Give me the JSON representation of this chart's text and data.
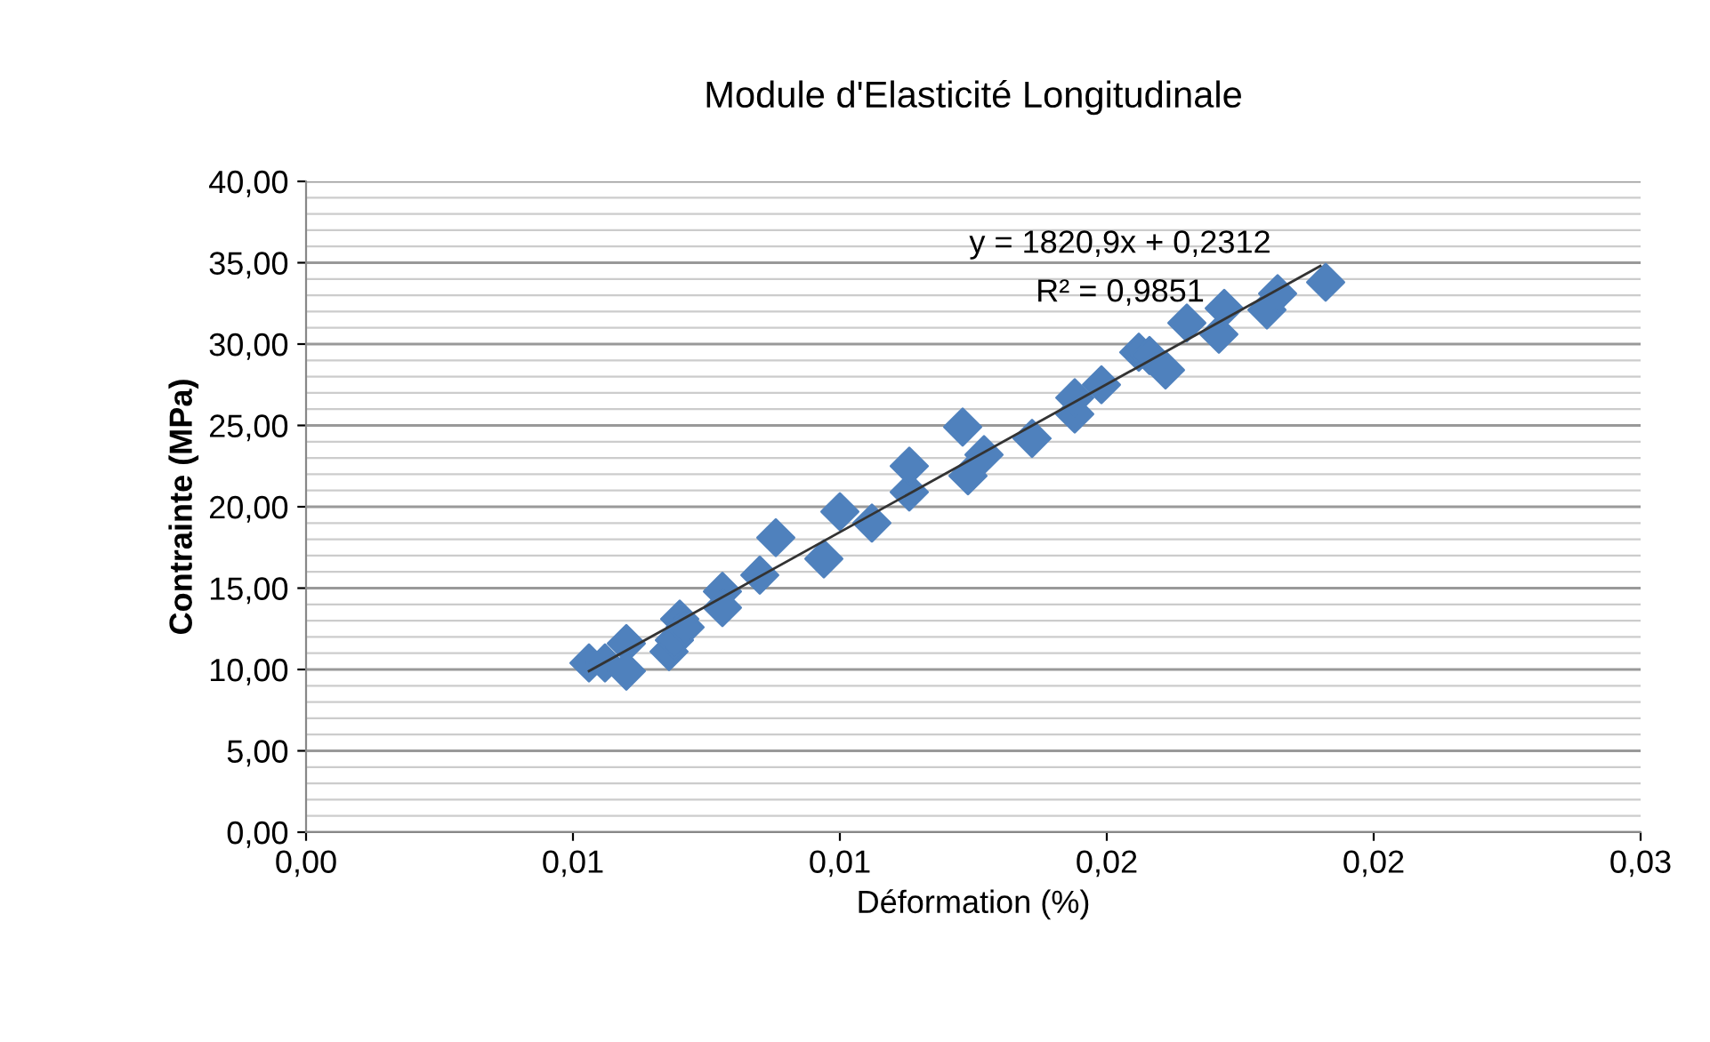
{
  "chart_data": {
    "type": "scatter",
    "title": "Module d'Elasticité Longitudinale",
    "xlabel": "Déformation (%)",
    "ylabel": "Contrainte (MPa)",
    "xlim": [
      0,
      0.025
    ],
    "xticks": [
      {
        "value": 0,
        "label": "0,00"
      },
      {
        "value": 0.005,
        "label": "0,01"
      },
      {
        "value": 0.01,
        "label": "0,01"
      },
      {
        "value": 0.015,
        "label": "0,02"
      },
      {
        "value": 0.02,
        "label": "0,02"
      },
      {
        "value": 0.025,
        "label": "0,03"
      }
    ],
    "ylim": [
      0,
      40
    ],
    "yticks": [
      {
        "value": 0,
        "label": "0,00"
      },
      {
        "value": 5,
        "label": "5,00"
      },
      {
        "value": 10,
        "label": "10,00"
      },
      {
        "value": 15,
        "label": "15,00"
      },
      {
        "value": 20,
        "label": "20,00"
      },
      {
        "value": 25,
        "label": "25,00"
      },
      {
        "value": 30,
        "label": "30,00"
      },
      {
        "value": 35,
        "label": "35,00"
      },
      {
        "value": 40,
        "label": "40,00"
      }
    ],
    "grid": "y",
    "marker": "diamond",
    "legend": false,
    "series": [
      {
        "color": "#4f81bd",
        "x": [
          0.0053,
          0.0056,
          0.006,
          0.006,
          0.0068,
          0.0069,
          0.007,
          0.0071,
          0.0078,
          0.0078,
          0.0085,
          0.0088,
          0.0097,
          0.01,
          0.0106,
          0.0113,
          0.0113,
          0.0123,
          0.0124,
          0.0127,
          0.0136,
          0.0144,
          0.0144,
          0.0149,
          0.0156,
          0.0158,
          0.0161,
          0.0165,
          0.0171,
          0.0172,
          0.018,
          0.0182,
          0.0191
        ],
        "values": [
          10.4,
          10.4,
          11.6,
          9.9,
          11.1,
          11.8,
          13.1,
          12.6,
          14.8,
          13.8,
          15.8,
          18.1,
          16.8,
          19.7,
          19.0,
          20.9,
          22.5,
          24.9,
          21.9,
          23.2,
          24.2,
          25.7,
          26.7,
          27.5,
          29.5,
          29.3,
          28.4,
          31.3,
          30.6,
          32.2,
          32.1,
          33.1,
          33.8
        ]
      },
      {
        "type": "line",
        "color": "#333333",
        "marker": "none",
        "x": [
          0.0053,
          0.019
        ],
        "values": [
          9.9,
          34.8
        ]
      }
    ],
    "annotations": [
      "y = 1820,9x + 0,2312",
      "R² = 0,9851"
    ]
  }
}
